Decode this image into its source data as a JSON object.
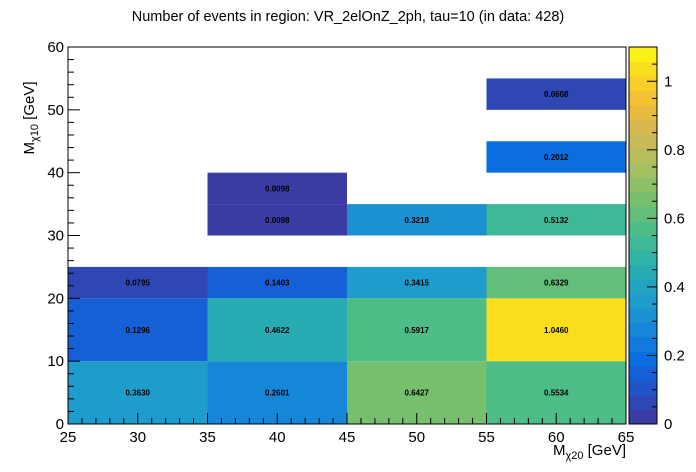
{
  "chart_data": {
    "type": "heatmap",
    "title": "Number of events in region: VR_2elOnZ_2ph, tau=10 (in data: 428)",
    "xlabel": {
      "main": "M",
      "sub": "χ20",
      "unit": " [GeV]"
    },
    "ylabel": {
      "main": "M",
      "sub": "χ10",
      "unit": " [GeV]"
    },
    "xlim": [
      25,
      65
    ],
    "ylim": [
      0,
      60
    ],
    "zlim": [
      0,
      1.1
    ],
    "x_ticks": [
      "25",
      "30",
      "35",
      "40",
      "45",
      "50",
      "55",
      "60",
      "65"
    ],
    "y_ticks": [
      "0",
      "10",
      "20",
      "30",
      "40",
      "50",
      "60"
    ],
    "z_ticks": [
      "0",
      "0.2",
      "0.4",
      "0.6",
      "0.8",
      "1"
    ],
    "cells": [
      {
        "x": [
          25,
          35
        ],
        "y": [
          0,
          10
        ],
        "value": 0.363,
        "label": "0.3630"
      },
      {
        "x": [
          35,
          45
        ],
        "y": [
          0,
          10
        ],
        "value": 0.2601,
        "label": "0.2601"
      },
      {
        "x": [
          45,
          55
        ],
        "y": [
          0,
          10
        ],
        "value": 0.6427,
        "label": "0.6427"
      },
      {
        "x": [
          55,
          65
        ],
        "y": [
          0,
          10
        ],
        "value": 0.5534,
        "label": "0.5534"
      },
      {
        "x": [
          25,
          35
        ],
        "y": [
          10,
          20
        ],
        "value": 0.1296,
        "label": "0.1296"
      },
      {
        "x": [
          35,
          45
        ],
        "y": [
          10,
          20
        ],
        "value": 0.4622,
        "label": "0.4622"
      },
      {
        "x": [
          45,
          55
        ],
        "y": [
          10,
          20
        ],
        "value": 0.5917,
        "label": "0.5917"
      },
      {
        "x": [
          55,
          65
        ],
        "y": [
          10,
          20
        ],
        "value": 1.046,
        "label": "1.0460"
      },
      {
        "x": [
          25,
          35
        ],
        "y": [
          20,
          25
        ],
        "value": 0.0795,
        "label": "0.0795"
      },
      {
        "x": [
          35,
          45
        ],
        "y": [
          20,
          25
        ],
        "value": 0.1403,
        "label": "0.1403"
      },
      {
        "x": [
          45,
          55
        ],
        "y": [
          20,
          25
        ],
        "value": 0.3415,
        "label": "0.3415"
      },
      {
        "x": [
          55,
          65
        ],
        "y": [
          20,
          25
        ],
        "value": 0.6329,
        "label": "0.6329"
      },
      {
        "x": [
          35,
          45
        ],
        "y": [
          30,
          35
        ],
        "value": 0.0098,
        "label": "0.0098"
      },
      {
        "x": [
          45,
          55
        ],
        "y": [
          30,
          35
        ],
        "value": 0.3218,
        "label": "0.3218"
      },
      {
        "x": [
          55,
          65
        ],
        "y": [
          30,
          35
        ],
        "value": 0.5132,
        "label": "0.5132"
      },
      {
        "x": [
          35,
          45
        ],
        "y": [
          35,
          40
        ],
        "value": 0.0098,
        "label": "0.0098"
      },
      {
        "x": [
          55,
          65
        ],
        "y": [
          40,
          45
        ],
        "value": 0.2012,
        "label": "0.2012"
      },
      {
        "x": [
          55,
          65
        ],
        "y": [
          50,
          55
        ],
        "value": 0.0608,
        "label": "0.0608"
      }
    ],
    "palette": [
      "#3a3ba3",
      "#2e47b5",
      "#2153c9",
      "#1560d6",
      "#0b6ee0",
      "#107bdd",
      "#1686d8",
      "#1b91d2",
      "#1e9ccb",
      "#22a4c0",
      "#28acb4",
      "#31b3a7",
      "#3eb897",
      "#4ebc87",
      "#62be79",
      "#76c06d",
      "#8dc067",
      "#a2bf61",
      "#b6bd5d",
      "#c9bb58",
      "#d9b94d",
      "#e8bb3f",
      "#f3c232",
      "#f8cf27",
      "#fade1d",
      "#faf116"
    ]
  }
}
